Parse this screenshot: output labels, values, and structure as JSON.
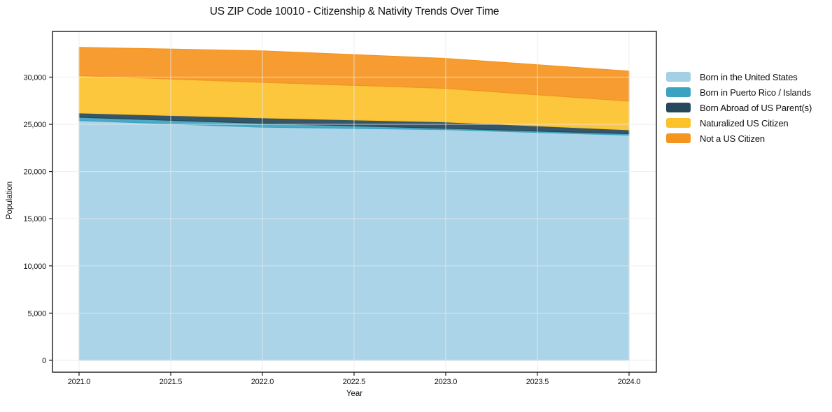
{
  "chart_data": {
    "type": "area",
    "stacked": true,
    "title": "US ZIP Code 10010 - Citizenship & Nativity Trends Over Time",
    "xlabel": "Year",
    "ylabel": "Population",
    "x": [
      2021,
      2022,
      2023,
      2024
    ],
    "series": [
      {
        "name": "Born in the United States",
        "color": "#A4D0E6",
        "values": [
          25400,
          24700,
          24430,
          23850
        ]
      },
      {
        "name": "Born in Puerto Rico / Islands",
        "color": "#3BA3C2",
        "values": [
          350,
          400,
          140,
          150
        ]
      },
      {
        "name": "Born Abroad of US Parent(s)",
        "color": "#25485A",
        "values": [
          450,
          580,
          680,
          420
        ]
      },
      {
        "name": "Naturalized US Citizen",
        "color": "#FCC22B",
        "values": [
          3950,
          3770,
          3550,
          3030
        ]
      },
      {
        "name": "Not a US Citizen",
        "color": "#F5941F",
        "values": [
          3000,
          3330,
          3180,
          3190
        ]
      }
    ],
    "x_ticks": [
      {
        "value": 2021.0,
        "label": "2021.0"
      },
      {
        "value": 2021.5,
        "label": "2021.5"
      },
      {
        "value": 2022.0,
        "label": "2022.0"
      },
      {
        "value": 2022.5,
        "label": "2022.5"
      },
      {
        "value": 2023.0,
        "label": "2023.0"
      },
      {
        "value": 2023.5,
        "label": "2023.5"
      },
      {
        "value": 2024.0,
        "label": "2024.0"
      }
    ],
    "y_ticks": [
      {
        "value": 0,
        "label": "0"
      },
      {
        "value": 5000,
        "label": "5,000"
      },
      {
        "value": 10000,
        "label": "10,000"
      },
      {
        "value": 15000,
        "label": "15,000"
      },
      {
        "value": 20000,
        "label": "20,000"
      },
      {
        "value": 25000,
        "label": "25,000"
      },
      {
        "value": 30000,
        "label": "30,000"
      }
    ],
    "xlim": [
      2020.855,
      2024.149
    ],
    "ylim": [
      -1260,
      34840
    ],
    "grid": true,
    "legend_position": "right",
    "colors": {
      "background": "#ffffff",
      "spine": "#1a1a1a",
      "grid": "#e8e8e8",
      "text": "#111111"
    }
  }
}
